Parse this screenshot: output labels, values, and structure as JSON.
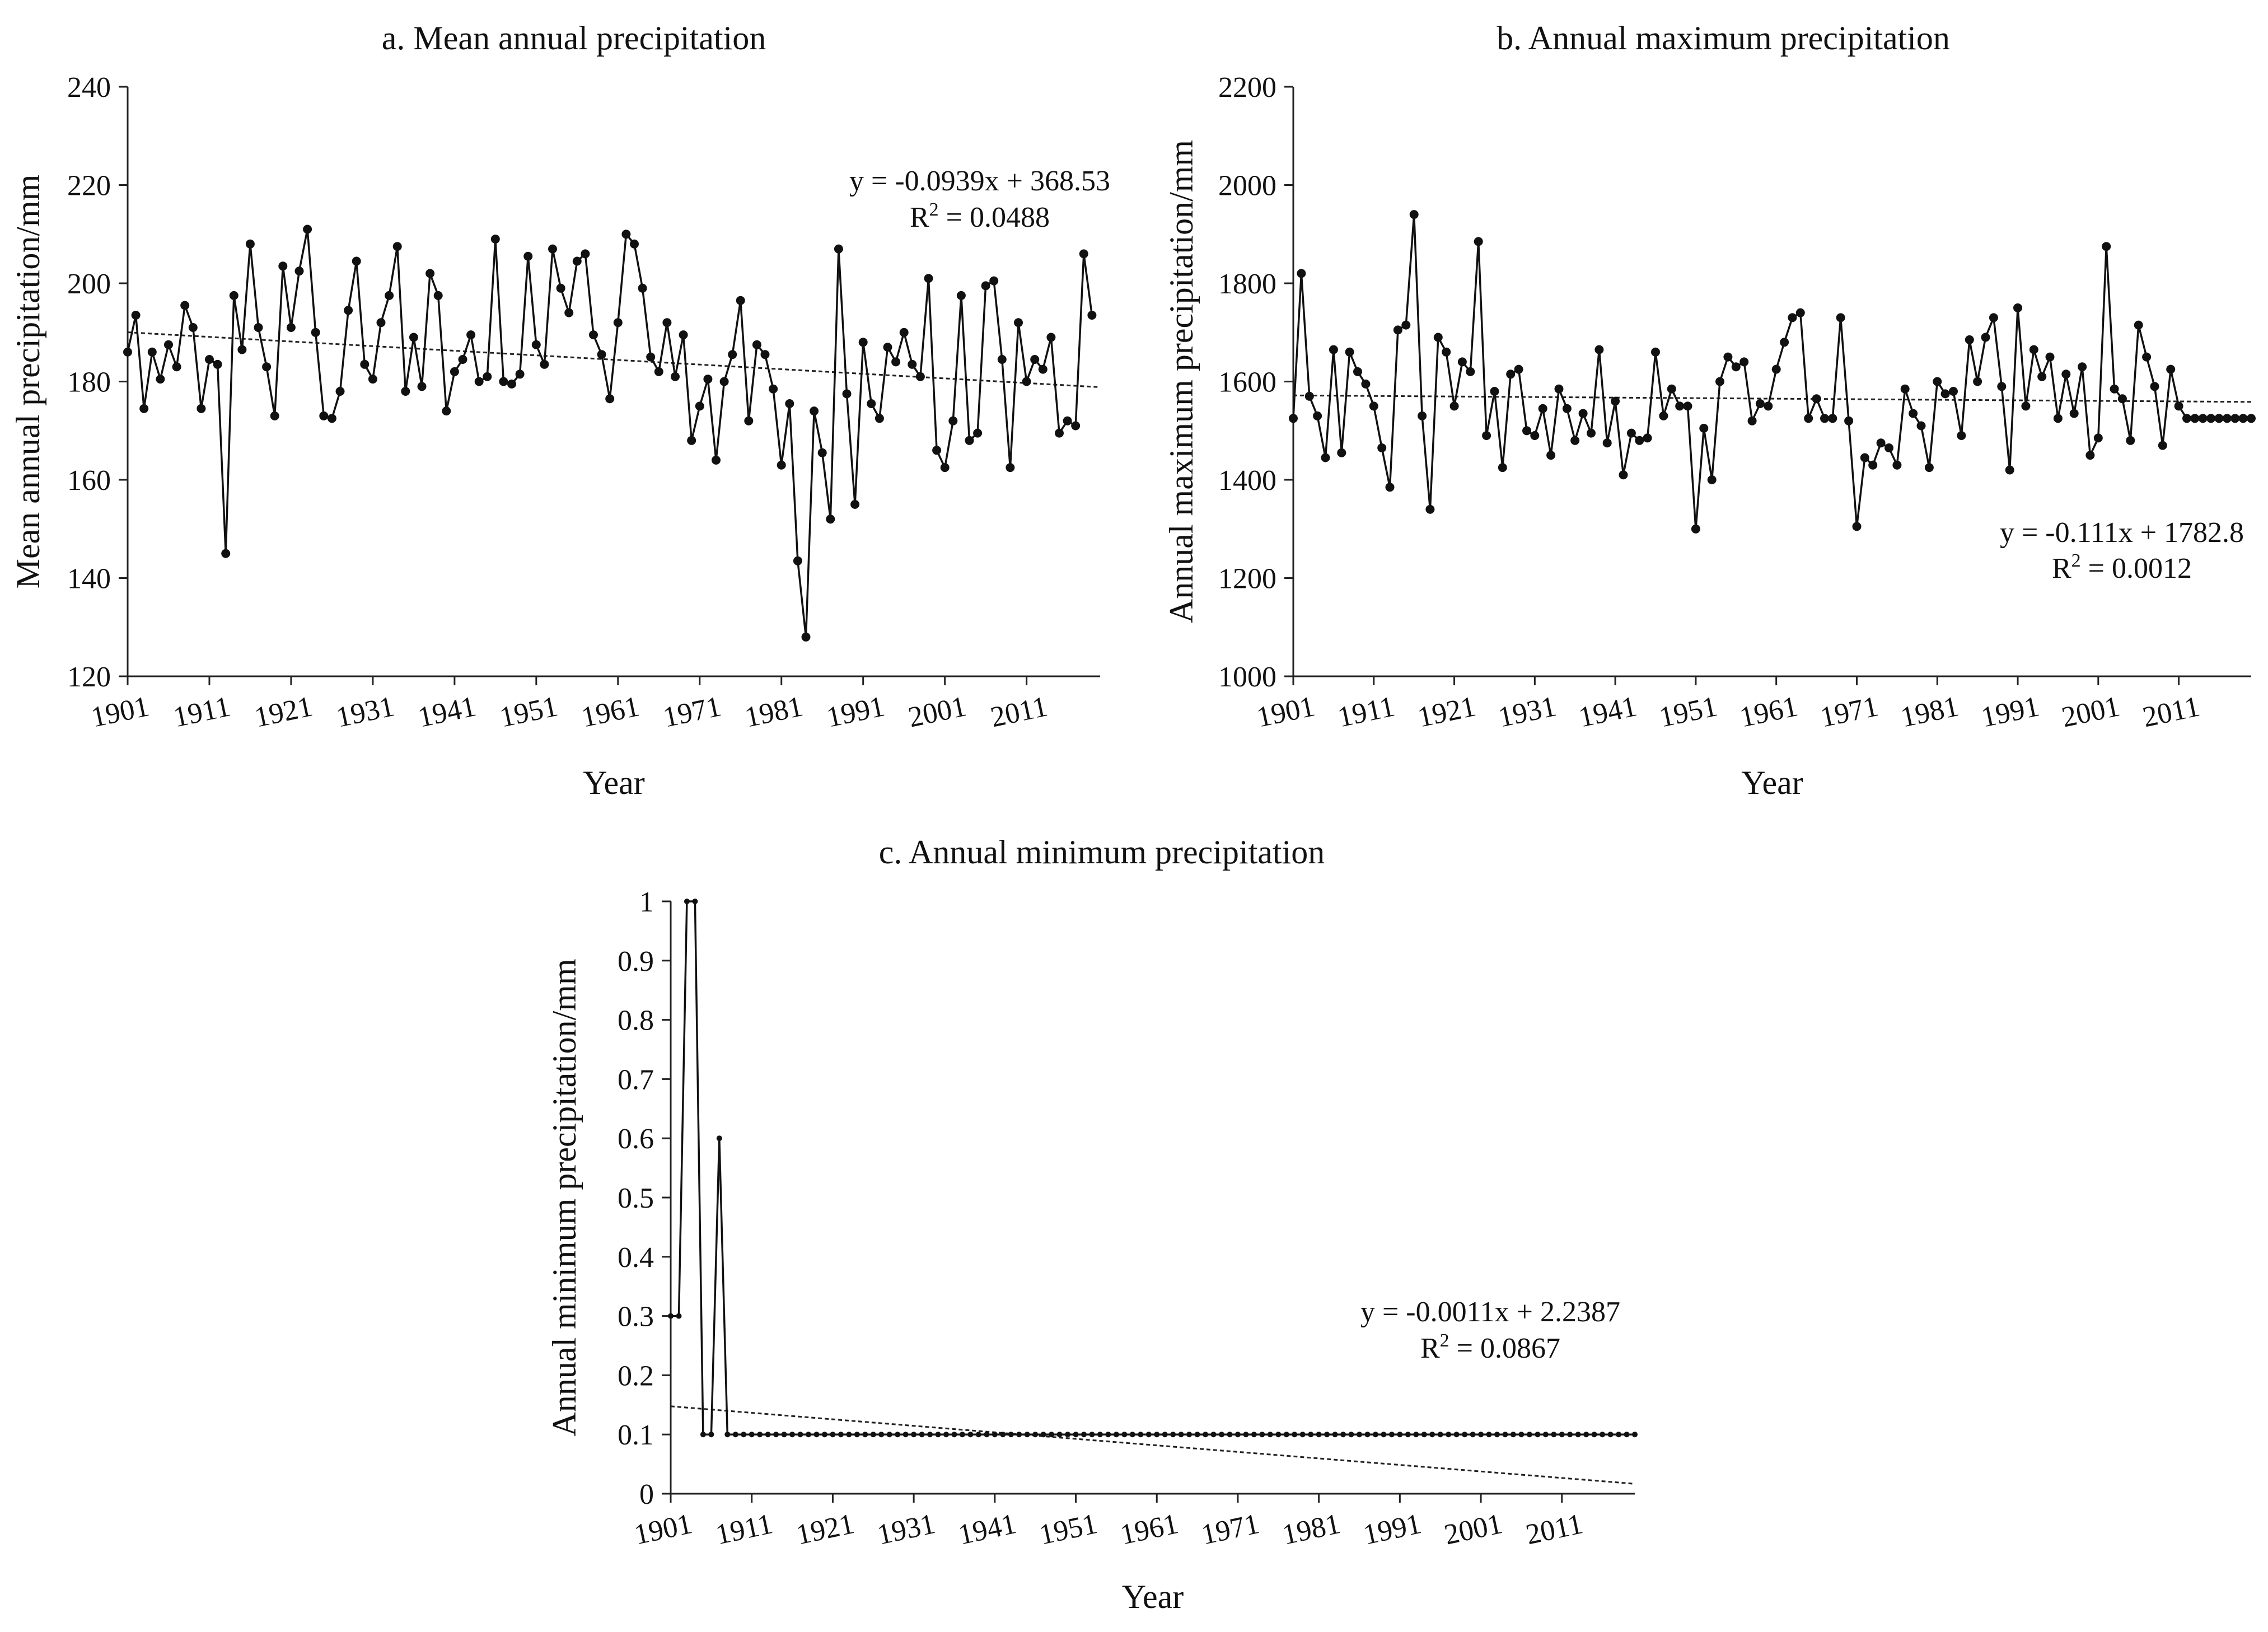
{
  "chart_data": [
    {
      "id": "a",
      "type": "line",
      "title": "a. Mean annual precipitation",
      "xlabel": "Year",
      "ylabel": "Mean annual precipitation/mm",
      "ylim": [
        120,
        240
      ],
      "yticks": [
        120,
        140,
        160,
        180,
        200,
        220,
        240
      ],
      "xlim": [
        1901,
        2020
      ],
      "xticks": [
        1901,
        1911,
        1921,
        1931,
        1941,
        1951,
        1961,
        1971,
        1981,
        1991,
        2001,
        2011
      ],
      "trend": {
        "slope": -0.0939,
        "intercept": 368.53
      },
      "equation": "y = -0.0939x + 368.53",
      "r2_prefix": "R",
      "r2_value": " = 0.0488",
      "series": [
        {
          "name": "Mean annual precipitation",
          "x_start": 1901,
          "values": [
            186,
            193.5,
            174.5,
            186,
            180.5,
            187.5,
            183,
            195.5,
            191,
            174.5,
            184.5,
            183.5,
            145,
            197.5,
            186.5,
            208,
            191,
            183,
            173,
            203.5,
            191,
            202.5,
            211,
            190,
            173,
            172.5,
            178,
            194.5,
            204.5,
            183.5,
            180.5,
            192,
            197.5,
            207.5,
            178,
            189,
            179,
            202,
            197.5,
            174,
            182,
            184.5,
            189.5,
            180,
            181,
            209,
            180,
            179.5,
            181.5,
            205.5,
            187.5,
            183.5,
            207,
            199,
            194,
            204.5,
            206,
            189.5,
            185.5,
            176.5,
            192,
            210,
            208,
            199,
            185,
            182,
            192,
            181,
            189.5,
            168,
            175,
            180.5,
            164,
            180,
            185.5,
            196.5,
            172,
            187.5,
            185.5,
            178.5,
            163,
            175.5,
            143.5,
            128,
            174,
            165.5,
            152,
            207,
            177.5,
            155,
            188,
            175.5,
            172.5,
            187,
            184,
            190,
            183.5,
            181,
            201,
            166,
            162.5,
            172,
            197.5,
            168,
            169.5,
            199.5,
            200.5,
            184.5,
            162.5,
            192,
            180,
            184.5,
            182.5,
            189,
            169.5,
            172,
            171,
            206,
            193.5
          ]
        }
      ]
    },
    {
      "id": "b",
      "type": "line",
      "title": "b. Annual maximum precipitation",
      "xlabel": "Year",
      "ylabel": "Annual maximum precipitation/mm",
      "ylim": [
        1000,
        2200
      ],
      "yticks": [
        1000,
        1200,
        1400,
        1600,
        1800,
        2000,
        2200
      ],
      "xlim": [
        1901,
        2020
      ],
      "xticks": [
        1901,
        1911,
        1921,
        1931,
        1941,
        1951,
        1961,
        1971,
        1981,
        1991,
        2001,
        2011
      ],
      "trend": {
        "slope": -0.111,
        "intercept": 1782.8
      },
      "equation": "y = -0.111x + 1782.8",
      "r2_prefix": "R",
      "r2_value": " = 0.0012",
      "series": [
        {
          "name": "Annual maximum precipitation",
          "x_start": 1901,
          "values": [
            1525,
            1820,
            1570,
            1530,
            1445,
            1665,
            1455,
            1660,
            1620,
            1595,
            1550,
            1465,
            1385,
            1705,
            1715,
            1940,
            1530,
            1340,
            1690,
            1660,
            1550,
            1640,
            1620,
            1885,
            1490,
            1580,
            1425,
            1615,
            1625,
            1500,
            1490,
            1545,
            1450,
            1585,
            1545,
            1480,
            1535,
            1495,
            1665,
            1475,
            1560,
            1410,
            1495,
            1480,
            1485,
            1660,
            1530,
            1585,
            1550,
            1550,
            1300,
            1505,
            1400,
            1600,
            1650,
            1630,
            1640,
            1520,
            1555,
            1550,
            1625,
            1680,
            1730,
            1740,
            1525,
            1565,
            1525,
            1525,
            1730,
            1520,
            1305,
            1445,
            1430,
            1475,
            1465,
            1430,
            1585,
            1535,
            1510,
            1425,
            1600,
            1575,
            1580,
            1490,
            1685,
            1600,
            1690,
            1730,
            1590,
            1420,
            1750,
            1550,
            1665,
            1610,
            1650,
            1525,
            1615,
            1535,
            1630,
            1450,
            1485,
            1875,
            1585,
            1565,
            1480,
            1715,
            1650,
            1590,
            1470,
            1625,
            1550,
            1525,
            1525,
            1525,
            1525,
            1525,
            1525,
            1525,
            1525,
            1525
          ]
        }
      ]
    },
    {
      "id": "c",
      "type": "line",
      "title": "c. Annual minimum precipitation",
      "xlabel": "Year",
      "ylabel": "Annual minimum precipitation/mm",
      "ylim": [
        0,
        1
      ],
      "yticks": [
        0,
        0.1,
        0.2,
        0.3,
        0.4,
        0.5,
        0.6,
        0.7,
        0.8,
        0.9,
        1
      ],
      "xlim": [
        1901,
        2020
      ],
      "xticks": [
        1901,
        1911,
        1921,
        1931,
        1941,
        1951,
        1961,
        1971,
        1981,
        1991,
        2001,
        2011
      ],
      "trend": {
        "slope": -0.0011,
        "intercept": 2.2387
      },
      "equation": "y = -0.0011x + 2.2387",
      "r2_prefix": "R",
      "r2_value": " = 0.0867",
      "series": [
        {
          "name": "Annual minimum precipitation",
          "x_start": 1901,
          "values": [
            0.3,
            0.3,
            1,
            1,
            0.1,
            0.1,
            0.6,
            0.1,
            0.1,
            0.1,
            0.1,
            0.1,
            0.1,
            0.1,
            0.1,
            0.1,
            0.1,
            0.1,
            0.1,
            0.1,
            0.1,
            0.1,
            0.1,
            0.1,
            0.1,
            0.1,
            0.1,
            0.1,
            0.1,
            0.1,
            0.1,
            0.1,
            0.1,
            0.1,
            0.1,
            0.1,
            0.1,
            0.1,
            0.1,
            0.1,
            0.1,
            0.1,
            0.1,
            0.1,
            0.1,
            0.1,
            0.1,
            0.1,
            0.1,
            0.1,
            0.1,
            0.1,
            0.1,
            0.1,
            0.1,
            0.1,
            0.1,
            0.1,
            0.1,
            0.1,
            0.1,
            0.1,
            0.1,
            0.1,
            0.1,
            0.1,
            0.1,
            0.1,
            0.1,
            0.1,
            0.1,
            0.1,
            0.1,
            0.1,
            0.1,
            0.1,
            0.1,
            0.1,
            0.1,
            0.1,
            0.1,
            0.1,
            0.1,
            0.1,
            0.1,
            0.1,
            0.1,
            0.1,
            0.1,
            0.1,
            0.1,
            0.1,
            0.1,
            0.1,
            0.1,
            0.1,
            0.1,
            0.1,
            0.1,
            0.1,
            0.1,
            0.1,
            0.1,
            0.1,
            0.1,
            0.1,
            0.1,
            0.1,
            0.1,
            0.1,
            0.1,
            0.1,
            0.1,
            0.1,
            0.1,
            0.1,
            0.1,
            0.1,
            0.1,
            0.1
          ]
        }
      ]
    }
  ]
}
